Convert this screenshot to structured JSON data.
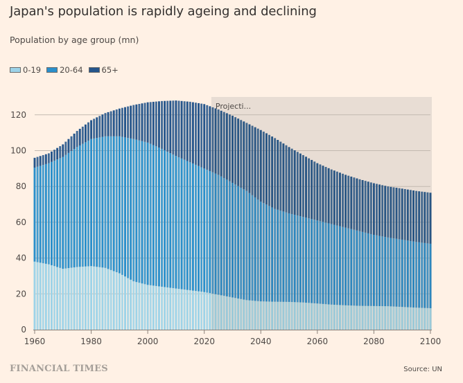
{
  "title": "Japan's population is rapidly ageing and declining",
  "subtitle": "Population by age group (mn)",
  "legend": [
    {
      "label": "0-19",
      "color": "#9dd3e8"
    },
    {
      "label": "20-64",
      "color": "#2a8fcb"
    },
    {
      "label": "65+",
      "color": "#25558b"
    }
  ],
  "projection_label": "Projecti...",
  "footer": {
    "brand": "FINANCIAL TIMES",
    "source": "Source: UN"
  },
  "chart_data": {
    "type": "bar",
    "stacked": true,
    "title": "Japan's population is rapidly ageing and declining",
    "ylabel": "Population by age group (mn)",
    "xlabel": "",
    "xlim": [
      1960,
      2100
    ],
    "ylim": [
      0,
      130
    ],
    "yticks": [
      0,
      20,
      40,
      60,
      80,
      100,
      120
    ],
    "xticks": [
      1960,
      1980,
      2000,
      2020,
      2040,
      2060,
      2080,
      2100
    ],
    "grid": true,
    "legend_position": "top-left",
    "projection_start_year": 2023,
    "bar_interval_years": 1,
    "x": [
      1960,
      1965,
      1970,
      1975,
      1980,
      1985,
      1990,
      1995,
      2000,
      2005,
      2010,
      2015,
      2020,
      2025,
      2030,
      2035,
      2040,
      2045,
      2050,
      2055,
      2060,
      2065,
      2070,
      2075,
      2080,
      2085,
      2090,
      2095,
      2100
    ],
    "series": [
      {
        "name": "0-19",
        "color": "#9dd3e8",
        "projected_color": "#9ac9d8",
        "values": [
          38.0,
          36.5,
          34.0,
          35.0,
          35.5,
          34.5,
          31.5,
          27.0,
          25.0,
          24.0,
          23.0,
          22.0,
          21.0,
          19.5,
          18.0,
          16.5,
          15.8,
          15.6,
          15.5,
          15.2,
          14.6,
          14.0,
          13.6,
          13.3,
          13.2,
          13.1,
          12.7,
          12.3,
          12.0
        ]
      },
      {
        "name": "20-64",
        "color": "#2a8fcb",
        "projected_color": "#2d86bd",
        "values": [
          52.5,
          56.5,
          62.5,
          67.0,
          71.0,
          73.5,
          76.5,
          79.5,
          79.5,
          77.0,
          74.0,
          71.5,
          69.0,
          67.0,
          64.0,
          61.0,
          55.7,
          51.9,
          49.5,
          47.8,
          46.4,
          45.0,
          43.4,
          41.7,
          39.8,
          38.4,
          37.6,
          36.7,
          36.0
        ]
      },
      {
        "name": "65+",
        "color": "#25558b",
        "projected_color": "#285583",
        "values": [
          5.5,
          5.5,
          7.0,
          9.0,
          10.5,
          13.0,
          15.5,
          19.0,
          22.5,
          26.7,
          31.0,
          33.8,
          36.0,
          36.5,
          37.5,
          38.0,
          40.0,
          39.5,
          37.0,
          34.5,
          32.0,
          30.5,
          29.5,
          29.0,
          28.8,
          28.5,
          28.5,
          28.5,
          28.5
        ]
      }
    ]
  }
}
